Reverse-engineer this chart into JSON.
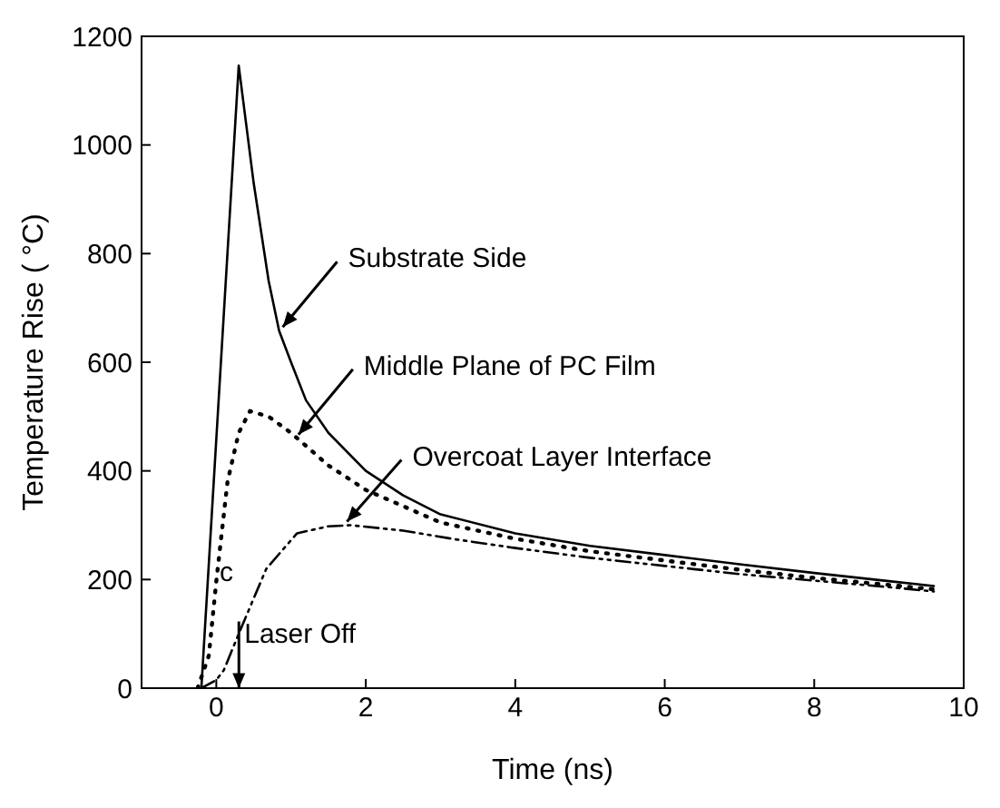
{
  "chart_data": {
    "type": "line",
    "xlabel": "Time (ns)",
    "ylabel": "Temperature Rise ( °C)",
    "xlim": [
      -1,
      10
    ],
    "xticks": [
      0,
      2,
      4,
      6,
      8,
      10
    ],
    "ylim": [
      0,
      1200
    ],
    "yticks": [
      0,
      200,
      400,
      600,
      800,
      1000,
      1200
    ],
    "grid": false,
    "legend": false,
    "marker": "none",
    "series": [
      {
        "color": "#000000",
        "line_style": "solid",
        "x": [
          -0.2,
          0.3,
          0.5,
          0.7,
          0.84,
          1.0,
          1.2,
          1.5,
          2,
          2.5,
          3,
          4,
          5,
          6,
          7,
          8,
          9,
          9.6
        ],
        "values": [
          0,
          1146,
          930,
          750,
          658,
          600,
          530,
          470,
          400,
          355,
          320,
          285,
          262,
          245,
          228,
          212,
          197,
          188
        ]
      },
      {
        "color": "#000000",
        "line_style": "dotted",
        "x": [
          -0.25,
          -0.1,
          0,
          0.15,
          0.3,
          0.45,
          0.7,
          1.0,
          1.5,
          2,
          3,
          4,
          5,
          6,
          7,
          8,
          9,
          9.6
        ],
        "values": [
          0,
          60,
          197,
          380,
          470,
          510,
          500,
          470,
          410,
          365,
          305,
          275,
          252,
          235,
          218,
          203,
          190,
          182
        ]
      },
      {
        "color": "#000000",
        "line_style": "dashed",
        "x": [
          -0.2,
          0,
          0.1,
          0.33,
          0.67,
          1.08,
          1.5,
          1.8,
          2.5,
          3.2,
          4,
          5,
          6,
          7,
          8,
          9,
          9.6
        ],
        "values": [
          0,
          15,
          33,
          110,
          220,
          285,
          298,
          300,
          290,
          274,
          258,
          240,
          225,
          210,
          198,
          186,
          178
        ]
      }
    ],
    "annotations": [
      {
        "text": "Substrate Side",
        "x": 0.84,
        "y": 658
      },
      {
        "text": "Middle Plane of PC Film",
        "x": 1.05,
        "y": 460
      },
      {
        "text": "Overcoat Layer Interface",
        "x": 1.7,
        "y": 300
      },
      "c",
      "Laser Off"
    ]
  }
}
